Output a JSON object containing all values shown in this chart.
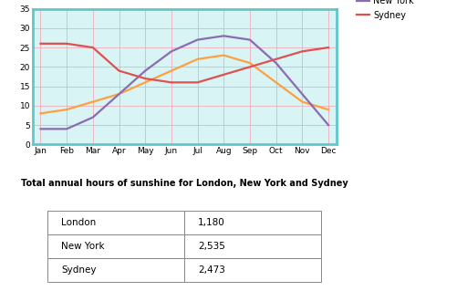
{
  "months": [
    "Jan",
    "Feb",
    "Mar",
    "Apr",
    "May",
    "Jun",
    "Jul",
    "Aug",
    "Sep",
    "Oct",
    "Nov",
    "Dec"
  ],
  "london": [
    8,
    9,
    11,
    13,
    16,
    19,
    22,
    23,
    21,
    16,
    11,
    9
  ],
  "new_york": [
    4,
    4,
    7,
    13,
    19,
    24,
    27,
    28,
    27,
    21,
    13,
    5
  ],
  "sydney": [
    26,
    26,
    25,
    19,
    17,
    16,
    16,
    18,
    20,
    22,
    24,
    25
  ],
  "london_color": "#FFA040",
  "new_york_color": "#8B6BB1",
  "sydney_color": "#E05050",
  "plot_bg_color": "#D8F4F4",
  "grid_color": "#F4A0B0",
  "border_color": "#60C8C8",
  "ylim": [
    0,
    35
  ],
  "yticks": [
    0,
    5,
    10,
    15,
    20,
    25,
    30,
    35
  ],
  "table_title": "Total annual hours of sunshine for London, New York and Sydney",
  "table_data": [
    [
      "London",
      "1,180"
    ],
    [
      "New York",
      "2,535"
    ],
    [
      "Sydney",
      "2,473"
    ]
  ]
}
